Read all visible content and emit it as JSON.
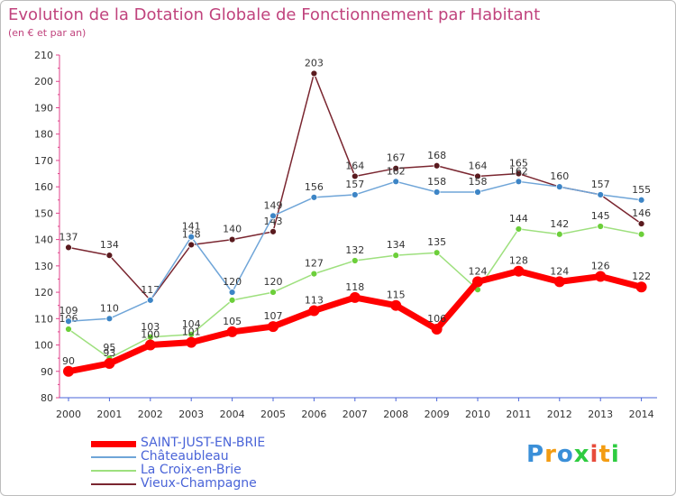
{
  "title": "Evolution de la Dotation Globale de Fonctionnement par Habitant",
  "subtitle": "(en € et par an)",
  "logo": "Proxiti",
  "chart_data": {
    "type": "line",
    "title": "Evolution de la Dotation Globale de Fonctionnement par Habitant",
    "subtitle": "(en € et par an)",
    "xlabel": "",
    "ylabel": "",
    "x": [
      "2000",
      "2001",
      "2002",
      "2003",
      "2004",
      "2005",
      "2006",
      "2007",
      "2008",
      "2009",
      "2010",
      "2011",
      "2012",
      "2013",
      "2014"
    ],
    "ylim": [
      80,
      210
    ],
    "yticks": [
      80,
      90,
      100,
      110,
      120,
      130,
      140,
      150,
      160,
      170,
      180,
      190,
      200,
      210
    ],
    "grid": false,
    "legend_position": "bottom-left",
    "series": [
      {
        "name": "Vieux-Champagne",
        "color": "#7a2630",
        "marker": "#5a1a1e",
        "width": 1.5,
        "values": [
          137,
          134,
          117,
          138,
          140,
          143,
          203,
          164,
          167,
          168,
          164,
          165,
          160,
          157,
          146
        ],
        "labels": [
          "137",
          "134",
          "117",
          "138",
          "140",
          "143",
          "203",
          "164",
          "167",
          "168",
          "164",
          "165",
          "160",
          "157",
          "146"
        ]
      },
      {
        "name": "La Croix-en-Brie",
        "color": "#9ee07e",
        "marker": "#6ccf3a",
        "width": 1.5,
        "values": [
          106,
          95,
          103,
          104,
          117,
          120,
          127,
          132,
          134,
          135,
          121,
          144,
          142,
          145,
          142
        ],
        "labels": [
          "106",
          "95",
          "103",
          "104",
          "",
          "120",
          "127",
          "132",
          "134",
          "135",
          "",
          "144",
          "142",
          "145",
          ""
        ]
      },
      {
        "name": "Châteaubleau",
        "color": "#6fa5d8",
        "marker": "#3d85c6",
        "width": 1.5,
        "values": [
          109,
          110,
          117,
          141,
          120,
          149,
          156,
          157,
          162,
          158,
          158,
          162,
          160,
          157,
          155
        ],
        "labels": [
          "109",
          "110",
          "",
          "141",
          "120",
          "149",
          "156",
          "157",
          "162",
          "158",
          "158",
          "162",
          "",
          "",
          "155"
        ]
      },
      {
        "name": "SAINT-JUST-EN-BRIE",
        "color": "#ff0000",
        "marker": "#ff0000",
        "width": 7,
        "values": [
          90,
          93,
          100,
          101,
          105,
          107,
          113,
          118,
          115,
          106,
          124,
          128,
          124,
          126,
          122
        ],
        "labels": [
          "90",
          "93",
          "100",
          "101",
          "105",
          "107",
          "113",
          "118",
          "115",
          "106",
          "124",
          "128",
          "124",
          "126",
          "122"
        ]
      }
    ],
    "legend": [
      {
        "name": "SAINT-JUST-EN-BRIE",
        "color": "#ff0000"
      },
      {
        "name": "Châteaubleau",
        "color": "#6fa5d8"
      },
      {
        "name": "La Croix-en-Brie",
        "color": "#9ee07e"
      },
      {
        "name": "Vieux-Champagne",
        "color": "#7a2630"
      }
    ]
  }
}
